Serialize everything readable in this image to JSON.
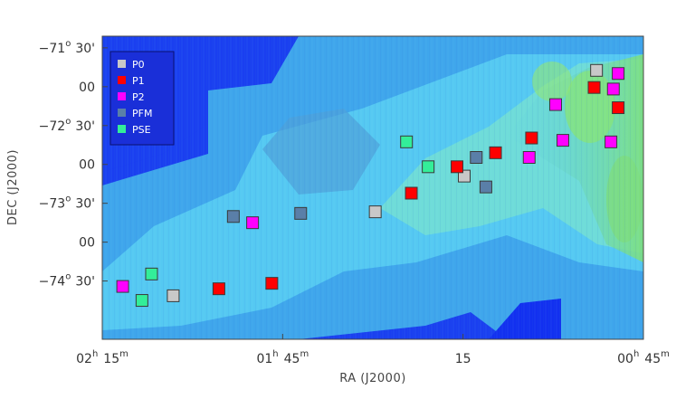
{
  "chart_data": {
    "type": "scatter",
    "title": "",
    "xlabel": "RA (J2000)",
    "ylabel": "DEC (J2000)",
    "x_unit": "deg",
    "y_unit": "deg",
    "xlim": [
      33.75,
      11.25
    ],
    "ylim": [
      -74.75,
      -70.85
    ],
    "grid": false,
    "legend_position": "top-left",
    "background": "colour-scale column-density map (blue low, green high)",
    "x_ticks": [
      {
        "value": 33.75,
        "main": "02",
        "unit": "h",
        "sub": "15",
        "subunit": "m"
      },
      {
        "value": 26.25,
        "main": "01",
        "unit": "h",
        "sub": "45",
        "subunit": "m"
      },
      {
        "value": 18.75,
        "main": "15",
        "unit": "",
        "sub": "",
        "subunit": ""
      },
      {
        "value": 11.25,
        "main": "00",
        "unit": "h",
        "sub": "45",
        "subunit": "m"
      }
    ],
    "y_ticks": [
      {
        "value": -71.0,
        "main": "−71",
        "deg": "o",
        "sub": "30'"
      },
      {
        "value": -71.5,
        "main": "00",
        "deg": "",
        "sub": ""
      },
      {
        "value": -72.0,
        "main": "−72",
        "deg": "o",
        "sub": "30'"
      },
      {
        "value": -72.5,
        "main": "00",
        "deg": "",
        "sub": ""
      },
      {
        "value": -73.0,
        "main": "−73",
        "deg": "o",
        "sub": "30'"
      },
      {
        "value": -73.5,
        "main": "00",
        "deg": "",
        "sub": ""
      },
      {
        "value": -74.0,
        "main": "−74",
        "deg": "o",
        "sub": "30'"
      }
    ],
    "series": [
      {
        "name": "P0",
        "color": "#c8c8c8",
        "points": [
          {
            "x": 13.2,
            "y": -71.29
          },
          {
            "x": 18.7,
            "y": -72.65
          },
          {
            "x": 22.4,
            "y": -73.11
          },
          {
            "x": 30.8,
            "y": -74.19
          }
        ]
      },
      {
        "name": "P1",
        "color": "#ff0000",
        "points": [
          {
            "x": 13.3,
            "y": -71.51
          },
          {
            "x": 12.3,
            "y": -71.77
          },
          {
            "x": 15.9,
            "y": -72.16
          },
          {
            "x": 17.4,
            "y": -72.35
          },
          {
            "x": 19.0,
            "y": -72.53
          },
          {
            "x": 20.9,
            "y": -72.87
          },
          {
            "x": 26.7,
            "y": -74.03
          },
          {
            "x": 28.9,
            "y": -74.1
          }
        ]
      },
      {
        "name": "P2",
        "color": "#ff00ff",
        "points": [
          {
            "x": 12.3,
            "y": -71.33
          },
          {
            "x": 12.5,
            "y": -71.53
          },
          {
            "x": 14.9,
            "y": -71.73
          },
          {
            "x": 14.6,
            "y": -72.19
          },
          {
            "x": 12.6,
            "y": -72.21
          },
          {
            "x": 16.0,
            "y": -72.41
          },
          {
            "x": 27.5,
            "y": -73.25
          },
          {
            "x": 32.9,
            "y": -74.07
          }
        ]
      },
      {
        "name": "PFM",
        "color": "#5a7fa8",
        "points": [
          {
            "x": 18.2,
            "y": -72.41
          },
          {
            "x": 17.8,
            "y": -72.79
          },
          {
            "x": 25.5,
            "y": -73.13
          },
          {
            "x": 28.3,
            "y": -73.17
          }
        ]
      },
      {
        "name": "PSE",
        "color": "#33ee99",
        "points": [
          {
            "x": 21.1,
            "y": -72.21
          },
          {
            "x": 20.2,
            "y": -72.53
          },
          {
            "x": 31.7,
            "y": -73.91
          },
          {
            "x": 32.1,
            "y": -74.25
          }
        ]
      }
    ]
  }
}
